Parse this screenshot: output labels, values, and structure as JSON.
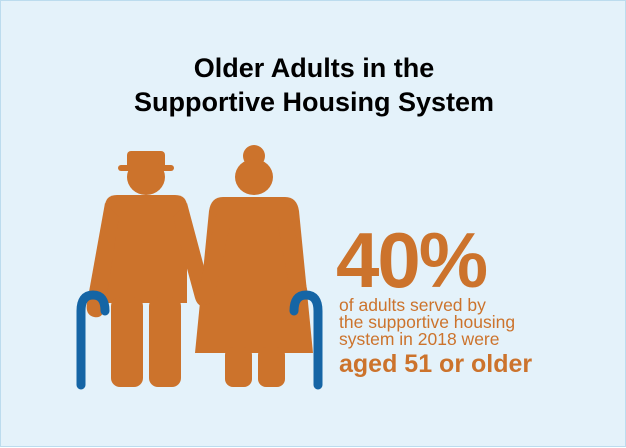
{
  "title": {
    "line1": "Older Adults in the",
    "line2": "Supportive Housing System"
  },
  "stat": {
    "percent": "40%",
    "desc_line1": "of adults served by",
    "desc_line2": "the supportive housing",
    "desc_line3": "system in 2018 were",
    "highlight": "aged 51 or older"
  },
  "icons": {
    "man": "elderly-man-icon",
    "woman": "elderly-woman-icon",
    "cane": "walking-cane-icon"
  },
  "colors": {
    "background": "#e4f2fa",
    "border": "#bcdcee",
    "figure": "#cc732c",
    "cane": "#1565a5",
    "title": "#000000",
    "accent_text": "#cc732c"
  }
}
